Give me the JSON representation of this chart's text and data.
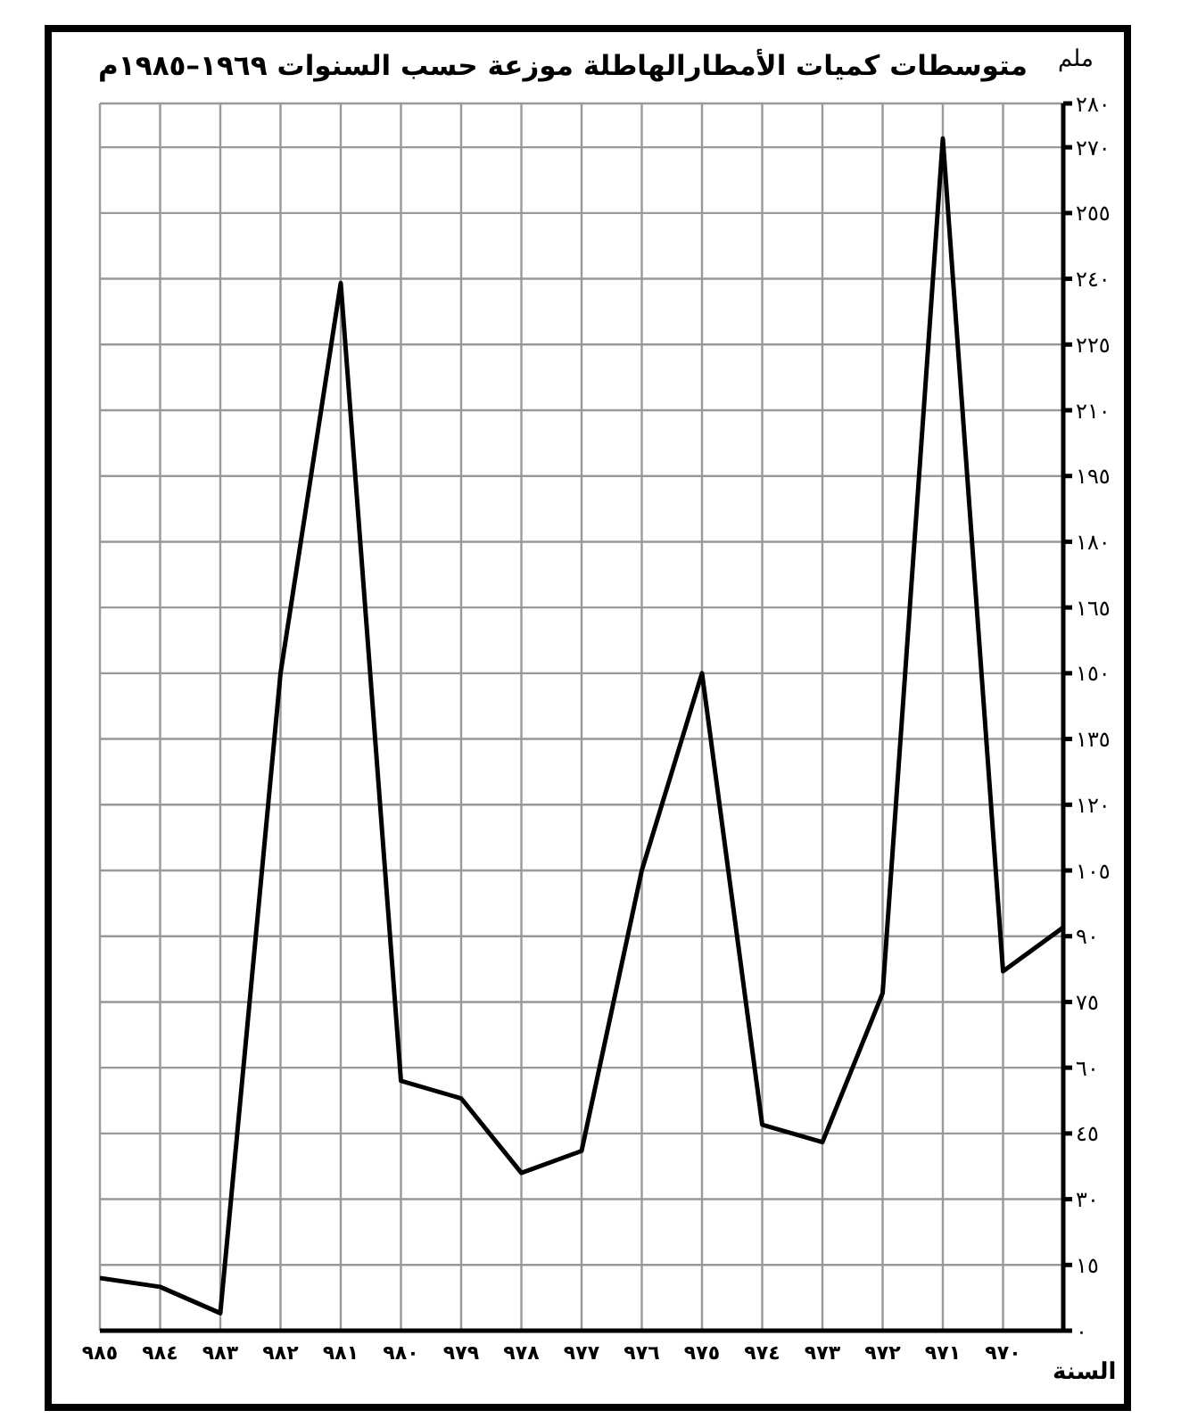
{
  "chart_data": {
    "type": "line",
    "title": "متوسطات كميات الأمطارالهاطلة موزعة حسب السنوات ١٩٦٩–١٩٨٥م",
    "xlabel": "السنة",
    "ylabel": "ملم",
    "categories": [
      "٩٨٥",
      "٩٨٤",
      "٩٨٣",
      "٩٨٢",
      "٩٨١",
      "٩٨٠",
      "٩٧٩",
      "٩٧٨",
      "٩٧٧",
      "٩٧٦",
      "٩٧٥",
      "٩٧٤",
      "٩٧٣",
      "٩٧٢",
      "٩٧١",
      "٩٧٠",
      null
    ],
    "series": [
      {
        "color": "#000000",
        "values": [
          12,
          10,
          4,
          150,
          239,
          57,
          53,
          36,
          41,
          105,
          150,
          47,
          43,
          77,
          272,
          82,
          92
        ]
      }
    ],
    "ylim": [
      0,
      280
    ],
    "yticks": [
      {
        "value": 0,
        "label": "٠"
      },
      {
        "value": 15,
        "label": "١٥"
      },
      {
        "value": 30,
        "label": "٣٠"
      },
      {
        "value": 45,
        "label": "٤٥"
      },
      {
        "value": 60,
        "label": "٦٠"
      },
      {
        "value": 75,
        "label": "٧٥"
      },
      {
        "value": 90,
        "label": "٩٠"
      },
      {
        "value": 105,
        "label": "١٠٥"
      },
      {
        "value": 120,
        "label": "١٢٠"
      },
      {
        "value": 135,
        "label": "١٣٥"
      },
      {
        "value": 150,
        "label": "١٥٠"
      },
      {
        "value": 165,
        "label": "١٦٥"
      },
      {
        "value": 180,
        "label": "١٨٠"
      },
      {
        "value": 195,
        "label": "١٩٥"
      },
      {
        "value": 210,
        "label": "٢١٠"
      },
      {
        "value": 225,
        "label": "٢٢٥"
      },
      {
        "value": 240,
        "label": "٢٤٠"
      },
      {
        "value": 255,
        "label": "٢٥٥"
      },
      {
        "value": 270,
        "label": "٢٧٠"
      },
      {
        "value": 280,
        "label": "٢٨٠"
      }
    ],
    "grid": true,
    "marker": "none",
    "line_style": "solid",
    "legend": false
  }
}
